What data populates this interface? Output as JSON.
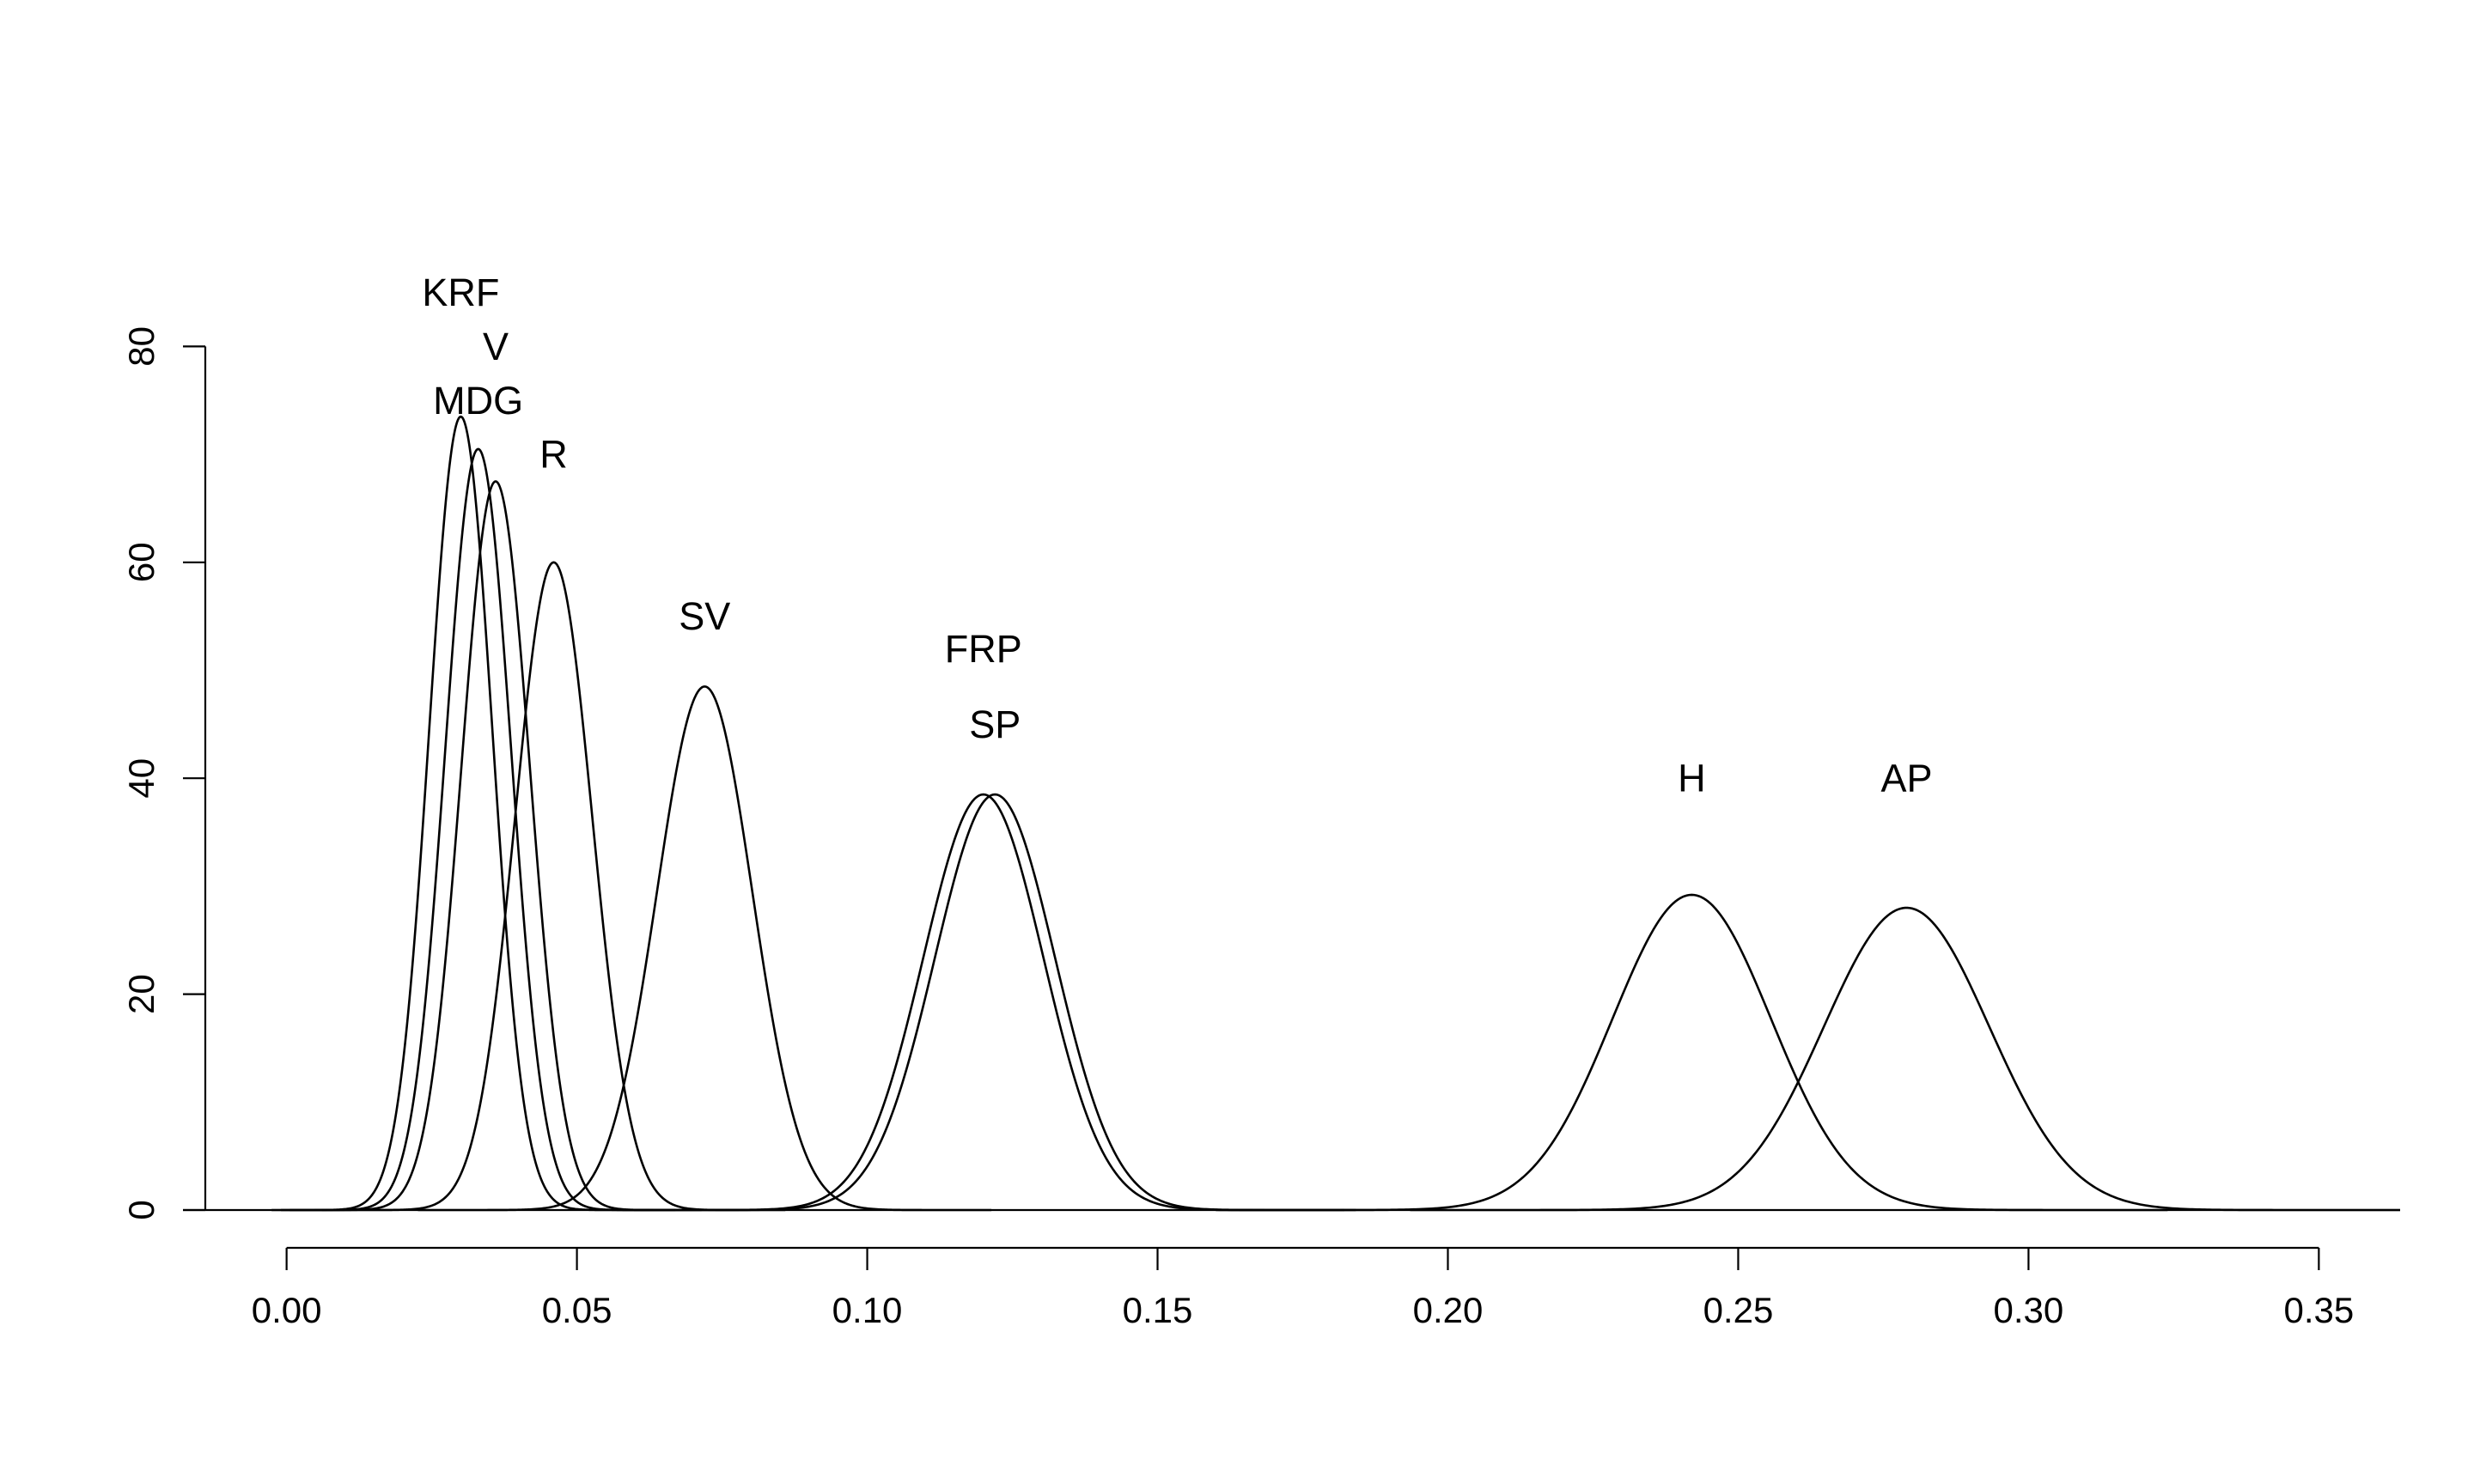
{
  "chart_data": {
    "type": "line",
    "title": "",
    "xlabel": "",
    "ylabel": "",
    "xlim": [
      -0.014,
      0.364
    ],
    "ylim": [
      -3.5,
      93
    ],
    "x_ticks": [
      0.0,
      0.05,
      0.1,
      0.15,
      0.2,
      0.25,
      0.3,
      0.35
    ],
    "x_tick_labels": [
      "0.00",
      "0.05",
      "0.10",
      "0.15",
      "0.20",
      "0.25",
      "0.30",
      "0.35"
    ],
    "y_ticks": [
      0,
      20,
      40,
      60,
      80
    ],
    "y_tick_labels": [
      "0",
      "20",
      "40",
      "60",
      "80"
    ],
    "zero_line": true,
    "grid": false,
    "legend": "none",
    "line_color": "#000000",
    "series": [
      {
        "name": "KRF",
        "peak_x": 0.03,
        "peak_y": 73.5,
        "sd": 0.00543,
        "label_x": 0.03,
        "label_y": 85
      },
      {
        "name": "V",
        "peak_x": 0.033,
        "peak_y": 70.5,
        "sd": 0.00566,
        "label_x": 0.036,
        "label_y": 80
      },
      {
        "name": "MDG",
        "peak_x": 0.036,
        "peak_y": 67.5,
        "sd": 0.00591,
        "label_x": 0.033,
        "label_y": 75
      },
      {
        "name": "R",
        "peak_x": 0.046,
        "peak_y": 60.0,
        "sd": 0.00665,
        "label_x": 0.046,
        "label_y": 70
      },
      {
        "name": "SV",
        "peak_x": 0.072,
        "peak_y": 48.5,
        "sd": 0.00823,
        "label_x": 0.072,
        "label_y": 55
      },
      {
        "name": "FRP",
        "peak_x": 0.12,
        "peak_y": 38.5,
        "sd": 0.01036,
        "label_x": 0.12,
        "label_y": 52
      },
      {
        "name": "SP",
        "peak_x": 0.122,
        "peak_y": 38.5,
        "sd": 0.01036,
        "label_x": 0.122,
        "label_y": 45
      },
      {
        "name": "H",
        "peak_x": 0.242,
        "peak_y": 29.2,
        "sd": 0.01366,
        "label_x": 0.242,
        "label_y": 40
      },
      {
        "name": "AP",
        "peak_x": 0.279,
        "peak_y": 28.0,
        "sd": 0.01425,
        "label_x": 0.279,
        "label_y": 40
      }
    ]
  }
}
